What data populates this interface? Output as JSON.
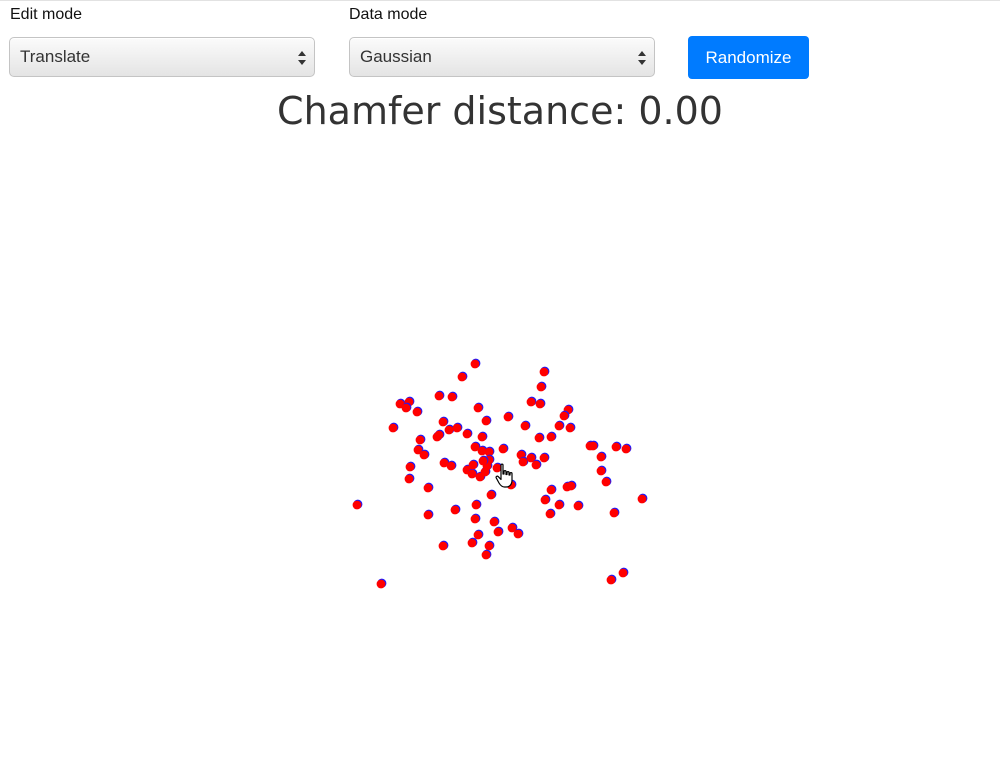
{
  "controls": {
    "edit_mode": {
      "label": "Edit mode",
      "value": "Translate"
    },
    "data_mode": {
      "label": "Data mode",
      "value": "Gaussian"
    },
    "randomize_label": "Randomize"
  },
  "metric": {
    "label": "Chamfer distance:",
    "value": "0.00",
    "text": "Chamfer distance: 0.00"
  },
  "colors": {
    "point_fill": "#ff0000",
    "point_outline": "#1a1aff",
    "button": "#007bff"
  },
  "cursor_icon": "hand-pointer-icon",
  "chart_data": {
    "type": "scatter",
    "series": [
      {
        "points": [
          [
            475,
            364
          ],
          [
            462,
            377
          ],
          [
            544,
            372
          ],
          [
            541,
            387
          ],
          [
            439,
            396
          ],
          [
            452,
            397
          ],
          [
            400,
            404
          ],
          [
            409,
            402
          ],
          [
            406,
            408
          ],
          [
            417,
            412
          ],
          [
            478,
            408
          ],
          [
            531,
            402
          ],
          [
            540,
            404
          ],
          [
            568,
            410
          ],
          [
            564,
            416
          ],
          [
            508,
            417
          ],
          [
            486,
            421
          ],
          [
            393,
            428
          ],
          [
            443,
            422
          ],
          [
            449,
            430
          ],
          [
            457,
            428
          ],
          [
            467,
            434
          ],
          [
            482,
            437
          ],
          [
            525,
            426
          ],
          [
            539,
            438
          ],
          [
            551,
            437
          ],
          [
            559,
            426
          ],
          [
            570,
            428
          ],
          [
            437,
            437
          ],
          [
            420,
            440
          ],
          [
            439,
            435
          ],
          [
            418,
            450
          ],
          [
            424,
            455
          ],
          [
            475,
            447
          ],
          [
            482,
            451
          ],
          [
            489,
            452
          ],
          [
            503,
            449
          ],
          [
            521,
            455
          ],
          [
            523,
            462
          ],
          [
            531,
            458
          ],
          [
            536,
            465
          ],
          [
            544,
            458
          ],
          [
            590,
            446
          ],
          [
            593,
            446
          ],
          [
            616,
            447
          ],
          [
            626,
            449
          ],
          [
            601,
            457
          ],
          [
            410,
            467
          ],
          [
            444,
            463
          ],
          [
            451,
            466
          ],
          [
            467,
            470
          ],
          [
            472,
            474
          ],
          [
            480,
            477
          ],
          [
            485,
            472
          ],
          [
            487,
            466
          ],
          [
            489,
            460
          ],
          [
            497,
            468
          ],
          [
            473,
            465
          ],
          [
            483,
            461
          ],
          [
            409,
            479
          ],
          [
            428,
            488
          ],
          [
            511,
            485
          ],
          [
            551,
            490
          ],
          [
            567,
            487
          ],
          [
            571,
            486
          ],
          [
            601,
            471
          ],
          [
            606,
            482
          ],
          [
            357,
            505
          ],
          [
            455,
            510
          ],
          [
            476,
            505
          ],
          [
            491,
            495
          ],
          [
            545,
            500
          ],
          [
            559,
            505
          ],
          [
            550,
            514
          ],
          [
            578,
            506
          ],
          [
            614,
            513
          ],
          [
            642,
            499
          ],
          [
            428,
            515
          ],
          [
            475,
            519
          ],
          [
            494,
            522
          ],
          [
            498,
            532
          ],
          [
            512,
            528
          ],
          [
            518,
            534
          ],
          [
            478,
            535
          ],
          [
            472,
            543
          ],
          [
            443,
            546
          ],
          [
            489,
            546
          ],
          [
            486,
            555
          ],
          [
            381,
            584
          ],
          [
            611,
            580
          ],
          [
            623,
            573
          ]
        ]
      }
    ]
  }
}
